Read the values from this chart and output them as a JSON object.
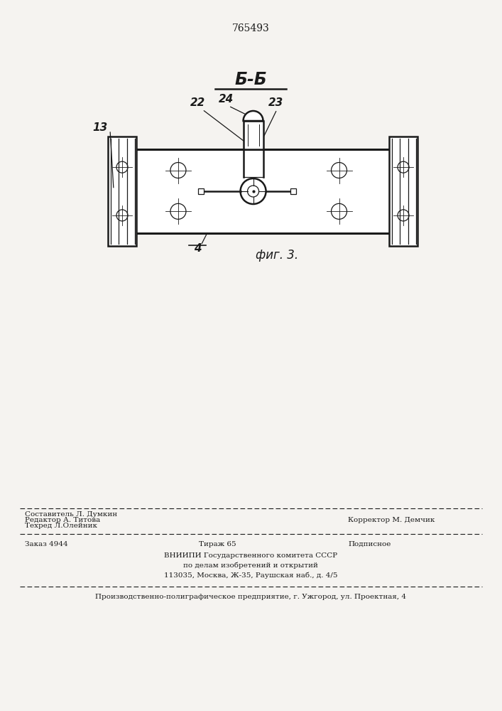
{
  "patent_number": "765493",
  "section_label": "Б-Б",
  "fig_label": "фиг. 3.",
  "bg_color": "#f5f3f0",
  "line_color": "#1a1a1a",
  "footer": {
    "line1_col1": "Редактор А. Титова",
    "line1_col2_l1": "Составитель Л. Думкин",
    "line1_col2_l2": "Техред Л.Олейник",
    "line1_col3": "Корректор М. Демчик",
    "line2_col1": "Заказ 4944",
    "line2_col2": "Тираж 65",
    "line2_col3": "Подписное",
    "line3": "ВНИИПИ Государственного комитета СССР",
    "line4": "по делам изобретений и открытий",
    "line5": "113035, Москва, Ж-35, Раушская наб., д. 4/5",
    "line6": "Производственно-полиграфическое предприятие, г. Ужгород, ул. Проектная, 4"
  }
}
